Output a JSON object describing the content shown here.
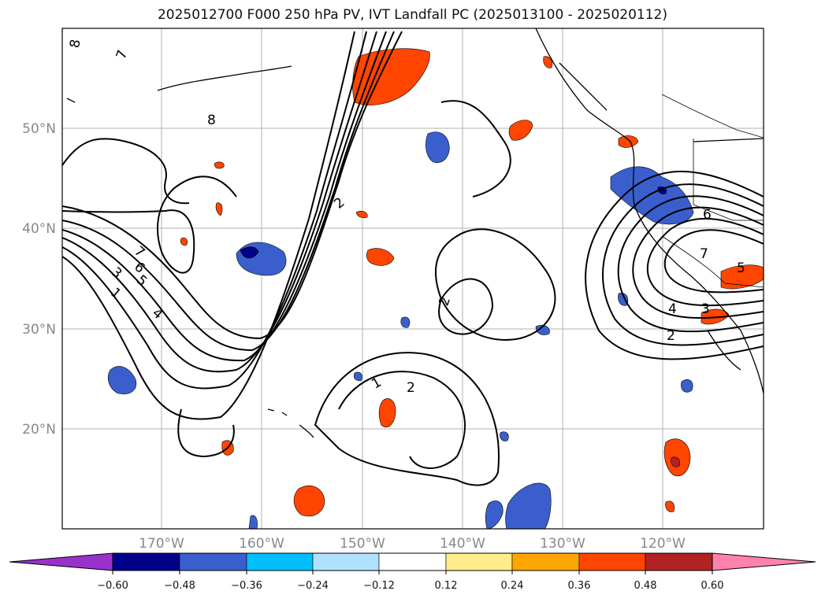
{
  "title": "2025012700 F000 250 hPa PV, IVT Landfall PC (2025013100 - 2025020112)",
  "lat_labels": [
    "50°N",
    "40°N",
    "30°N",
    "20°N"
  ],
  "lon_labels": [
    "170°W",
    "160°W",
    "150°W",
    "140°W",
    "130°W",
    "120°W"
  ],
  "colorbar": {
    "ticks": [
      "−0.60",
      "−0.48",
      "−0.36",
      "−0.24",
      "−0.12",
      "0.12",
      "0.24",
      "0.36",
      "0.48",
      "0.60"
    ],
    "colors": [
      "#9932CC",
      "#00008B",
      "#3A5FCD",
      "#00BFFF",
      "#B0E2FF",
      "#FFFFFF",
      "#FFEC8B",
      "#FFA500",
      "#FF4500",
      "#B22222",
      "#FF82AB"
    ]
  },
  "contour_labels": [
    "8",
    "7",
    "8",
    "2",
    "6",
    "7",
    "5",
    "4",
    "3",
    "2",
    "7",
    "6",
    "5",
    "3",
    "1",
    "4",
    "2",
    "1",
    "2"
  ]
}
